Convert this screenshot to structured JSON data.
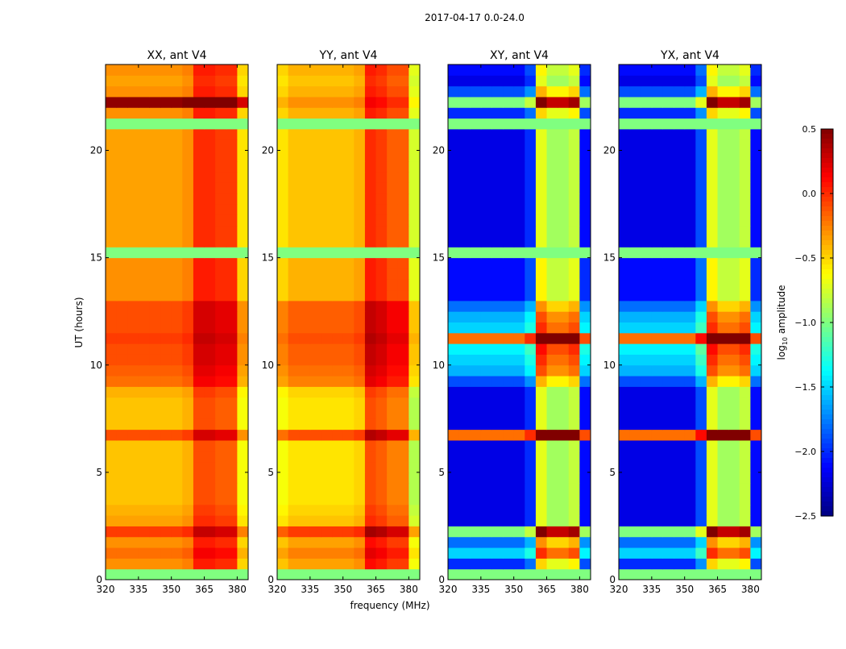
{
  "chart_data": {
    "type": "heatmap",
    "title": "2017-04-17 0.0-24.0",
    "xlabel": "frequency (MHz)",
    "ylabel": "UT (hours)",
    "xlim": [
      320,
      385
    ],
    "ylim": [
      0,
      24
    ],
    "xticks": [
      320,
      335,
      350,
      365,
      380
    ],
    "yticks": [
      0,
      5,
      10,
      15,
      20
    ],
    "row_step_hours": 0.5,
    "col_starts_mhz": [
      320,
      325,
      330,
      335,
      340,
      345,
      350,
      355,
      360,
      365,
      370,
      375,
      380
    ],
    "col_step_mhz": 5,
    "flagged_color": "#80ff80",
    "colorbar": {
      "label_main": "log",
      "label_sub": "10",
      "label_rest": " amplitude",
      "range": [
        -2.5,
        0.5
      ],
      "ticks": [
        0.5,
        0.0,
        -0.5,
        -1.0,
        -1.5,
        -2.0,
        -2.5
      ],
      "tick_labels": [
        "0.5",
        "0.0",
        "−0.5",
        "−1.0",
        "−1.5",
        "−2.0",
        "−2.5"
      ],
      "colormap": "jet"
    },
    "panels": [
      {
        "title": "XX, ant V4",
        "row_base": [
          null,
          -0.3,
          -0.2,
          -0.3,
          -0.05,
          -0.35,
          -0.4,
          -0.45,
          -0.45,
          -0.45,
          -0.45,
          -0.45,
          -0.45,
          -0.1,
          -0.45,
          -0.45,
          -0.45,
          -0.4,
          -0.2,
          -0.15,
          -0.1,
          -0.1,
          -0.05,
          -0.1,
          -0.1,
          -0.1,
          -0.3,
          -0.3,
          -0.3,
          -0.3,
          null,
          -0.35,
          -0.35,
          -0.35,
          -0.35,
          -0.35,
          -0.35,
          -0.35,
          -0.35,
          -0.35,
          -0.35,
          -0.35,
          null,
          -0.3,
          0.45,
          -0.3,
          -0.35,
          -0.3
        ],
        "col_offset": [
          0,
          0,
          0,
          0,
          0,
          0,
          0,
          0.05,
          0.35,
          0.35,
          0.3,
          0.3,
          -0.2
        ]
      },
      {
        "title": "YY, ant V4",
        "row_base": [
          null,
          -0.35,
          -0.25,
          -0.35,
          -0.05,
          -0.45,
          -0.5,
          -0.55,
          -0.55,
          -0.55,
          -0.55,
          -0.55,
          -0.55,
          -0.1,
          -0.55,
          -0.55,
          -0.55,
          -0.5,
          -0.25,
          -0.2,
          -0.15,
          -0.15,
          -0.1,
          -0.15,
          -0.15,
          -0.15,
          -0.4,
          -0.4,
          -0.4,
          -0.4,
          null,
          -0.45,
          -0.45,
          -0.45,
          -0.45,
          -0.45,
          -0.45,
          -0.45,
          -0.45,
          -0.45,
          -0.45,
          -0.45,
          null,
          -0.4,
          -0.3,
          -0.4,
          -0.45,
          -0.4
        ],
        "col_offset": [
          -0.1,
          0,
          0,
          0,
          0,
          0,
          0,
          0.05,
          0.45,
          0.4,
          0.3,
          0.3,
          -0.3
        ]
      },
      {
        "title": "XY, ant V4",
        "row_base": [
          null,
          -2.0,
          -1.5,
          -1.8,
          -1.0,
          -2.2,
          -2.2,
          -2.2,
          -2.2,
          -2.2,
          -2.2,
          -2.2,
          -2.2,
          -0.2,
          -2.2,
          -2.2,
          -2.2,
          -2.2,
          -1.9,
          -1.6,
          -1.5,
          -1.4,
          -0.2,
          -1.5,
          -1.6,
          -1.8,
          -2.1,
          -2.1,
          -2.1,
          -2.1,
          null,
          -2.2,
          -2.2,
          -2.2,
          -2.2,
          -2.2,
          -2.2,
          -2.2,
          -2.2,
          -2.2,
          -2.2,
          -2.2,
          null,
          -2.0,
          -1.0,
          -1.9,
          -2.2,
          -2.1
        ],
        "col_offset": [
          0,
          0,
          0,
          0,
          0,
          0,
          0,
          0.2,
          1.5,
          1.3,
          1.3,
          1.4,
          0.1
        ]
      },
      {
        "title": "YX, ant V4",
        "row_base": [
          null,
          -2.0,
          -1.5,
          -1.8,
          -1.0,
          -2.2,
          -2.2,
          -2.2,
          -2.2,
          -2.2,
          -2.2,
          -2.2,
          -2.2,
          -0.2,
          -2.2,
          -2.2,
          -2.2,
          -2.2,
          -1.9,
          -1.6,
          -1.5,
          -1.4,
          -0.2,
          -1.5,
          -1.6,
          -1.8,
          -2.1,
          -2.1,
          -2.1,
          -2.1,
          null,
          -2.2,
          -2.2,
          -2.2,
          -2.2,
          -2.2,
          -2.2,
          -2.2,
          -2.2,
          -2.2,
          -2.2,
          -2.2,
          null,
          -2.0,
          -1.0,
          -1.9,
          -2.2,
          -2.1
        ],
        "col_offset": [
          0,
          0,
          0,
          0,
          0,
          0,
          0,
          0.3,
          1.5,
          1.3,
          1.3,
          1.4,
          0.1
        ]
      }
    ]
  }
}
